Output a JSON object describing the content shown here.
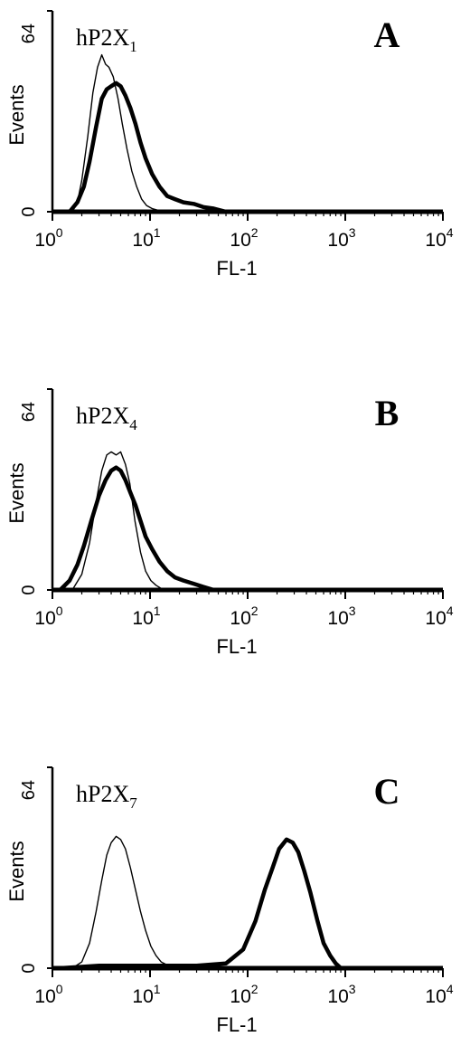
{
  "chart_data": [
    {
      "type": "line",
      "panel_label": "A",
      "title": "hP2X",
      "title_subscript": "1",
      "xlabel": "FL-1",
      "ylabel": "Events",
      "x_scale": "log",
      "xlim": [
        1,
        10000
      ],
      "ylim": [
        0,
        64
      ],
      "x_tick_labels": [
        {
          "base": "10",
          "exp": "0",
          "value": 1
        },
        {
          "base": "10",
          "exp": "1",
          "value": 10
        },
        {
          "base": "10",
          "exp": "2",
          "value": 100
        },
        {
          "base": "10",
          "exp": "3",
          "value": 1000
        },
        {
          "base": "10",
          "exp": "4",
          "value": 10000
        }
      ],
      "y_tick_labels": [
        {
          "label": "0",
          "value": 0
        },
        {
          "label": "64",
          "value": 64
        }
      ],
      "series": [
        {
          "style": "thin",
          "x": [
            1.6,
            1.8,
            2.0,
            2.3,
            2.6,
            2.9,
            3.2,
            3.5,
            3.8,
            4.2,
            4.7,
            5.2,
            5.8,
            6.5,
            7.3,
            8.2,
            9.2,
            10.5,
            12,
            14
          ],
          "y": [
            0,
            3,
            10,
            24,
            38,
            46,
            50,
            47,
            46,
            43,
            36,
            28,
            20,
            13,
            8,
            4,
            2,
            1,
            0.5,
            0
          ]
        },
        {
          "style": "thick",
          "x": [
            1.5,
            1.8,
            2.1,
            2.4,
            2.8,
            3.2,
            3.6,
            4.0,
            4.5,
            5.0,
            5.6,
            6.3,
            7.1,
            8.0,
            9.0,
            10.5,
            12.5,
            15,
            18,
            22,
            28,
            35,
            45,
            60
          ],
          "y": [
            0,
            3,
            8,
            16,
            27,
            36,
            39,
            40,
            41,
            40,
            37,
            33,
            28,
            22,
            17,
            12,
            8,
            5,
            4,
            3,
            2.5,
            1.5,
            1,
            0
          ]
        }
      ]
    },
    {
      "type": "line",
      "panel_label": "B",
      "title": "hP2X",
      "title_subscript": "4",
      "xlabel": "FL-1",
      "ylabel": "Events",
      "x_scale": "log",
      "xlim": [
        1,
        10000
      ],
      "ylim": [
        0,
        64
      ],
      "x_tick_labels": [
        {
          "base": "10",
          "exp": "0",
          "value": 1
        },
        {
          "base": "10",
          "exp": "1",
          "value": 10
        },
        {
          "base": "10",
          "exp": "2",
          "value": 100
        },
        {
          "base": "10",
          "exp": "3",
          "value": 1000
        },
        {
          "base": "10",
          "exp": "4",
          "value": 10000
        }
      ],
      "y_tick_labels": [
        {
          "label": "0",
          "value": 0
        },
        {
          "label": "64",
          "value": 64
        }
      ],
      "series": [
        {
          "style": "thin",
          "x": [
            1.6,
            2.0,
            2.4,
            2.8,
            3.2,
            3.6,
            4.0,
            4.5,
            5.0,
            5.6,
            6.2,
            7.0,
            8.0,
            9.0,
            10.2,
            11.5,
            13,
            15
          ],
          "y": [
            0,
            5,
            15,
            28,
            38,
            43,
            44,
            43,
            44,
            40,
            34,
            22,
            12,
            6,
            3,
            1.5,
            0.5,
            0
          ]
        },
        {
          "style": "thick",
          "x": [
            1.2,
            1.5,
            1.8,
            2.1,
            2.5,
            3.0,
            3.5,
            4.0,
            4.5,
            5.0,
            5.6,
            6.3,
            7.1,
            8.0,
            9.0,
            10.5,
            12.5,
            15,
            18,
            22,
            28,
            35,
            45
          ],
          "y": [
            0,
            3,
            8,
            14,
            22,
            30,
            35,
            38,
            39,
            38,
            35,
            31,
            27,
            22,
            17,
            13,
            9,
            6,
            4,
            3,
            2,
            1,
            0
          ]
        }
      ]
    },
    {
      "type": "line",
      "panel_label": "C",
      "title": "hP2X",
      "title_subscript": "7",
      "xlabel": "FL-1",
      "ylabel": "Events",
      "x_scale": "log",
      "xlim": [
        1,
        10000
      ],
      "ylim": [
        0,
        64
      ],
      "x_tick_labels": [
        {
          "base": "10",
          "exp": "0",
          "value": 1
        },
        {
          "base": "10",
          "exp": "1",
          "value": 10
        },
        {
          "base": "10",
          "exp": "2",
          "value": 100
        },
        {
          "base": "10",
          "exp": "3",
          "value": 1000
        },
        {
          "base": "10",
          "exp": "4",
          "value": 10000
        }
      ],
      "y_tick_labels": [
        {
          "label": "0",
          "value": 0
        },
        {
          "label": "64",
          "value": 64
        }
      ],
      "series": [
        {
          "style": "thin",
          "x": [
            1.6,
            2.0,
            2.4,
            2.8,
            3.2,
            3.6,
            4.0,
            4.5,
            5.0,
            5.6,
            6.3,
            7.1,
            8.0,
            9.0,
            10.2,
            11.5,
            13,
            15,
            18
          ],
          "y": [
            0,
            2,
            8,
            18,
            28,
            36,
            40,
            42,
            41,
            38,
            32,
            25,
            18,
            12,
            7,
            4,
            2,
            1,
            0
          ]
        },
        {
          "style": "thick",
          "x": [
            1.2,
            3,
            10,
            30,
            60,
            90,
            120,
            150,
            180,
            210,
            250,
            290,
            330,
            380,
            440,
            520,
            600,
            700,
            800,
            900
          ],
          "y": [
            0,
            0.8,
            0.8,
            0.8,
            1.5,
            6,
            15,
            25,
            32,
            38,
            41,
            40,
            37,
            31,
            24,
            15,
            8,
            4,
            1.5,
            0
          ]
        }
      ]
    }
  ]
}
